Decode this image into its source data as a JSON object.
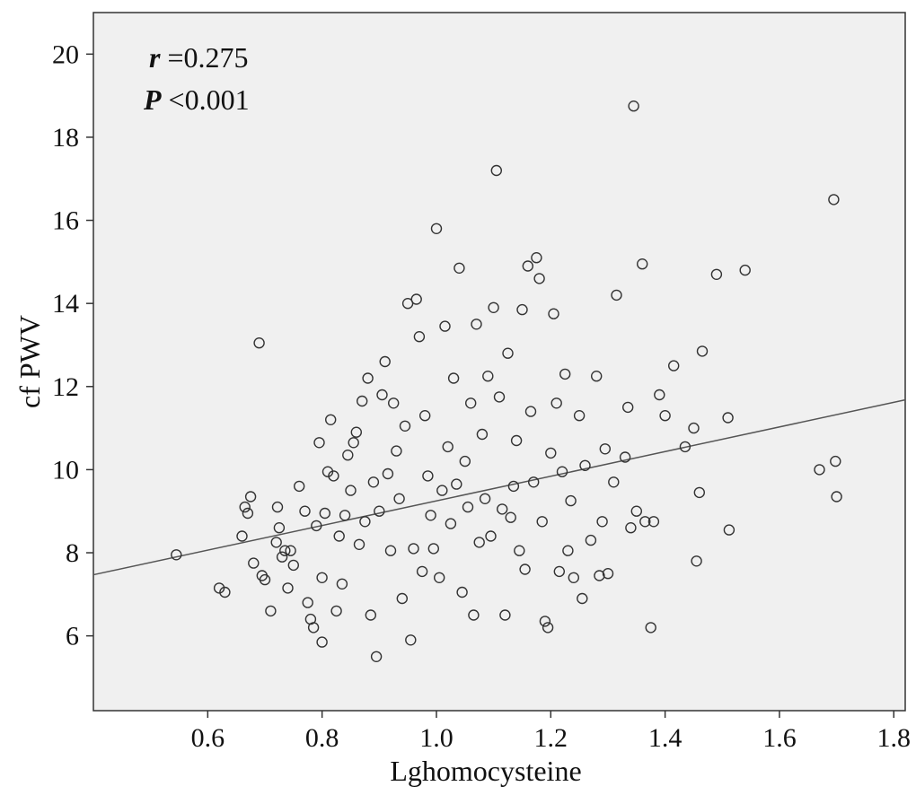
{
  "chart_data": {
    "type": "scatter",
    "xlabel": "Lghomocysteine",
    "ylabel": "cf PWV",
    "xlim": [
      0.4,
      1.82
    ],
    "ylim": [
      4.2,
      21
    ],
    "x_ticks": [
      "0.6",
      "0.8",
      "1.0",
      "1.2",
      "1.4",
      "1.6",
      "1.8"
    ],
    "y_ticks": [
      "6",
      "8",
      "10",
      "12",
      "14",
      "16",
      "18",
      "20"
    ],
    "grid": false,
    "annotation": {
      "r_label": "r",
      "r_value": " =0.275",
      "p_label": "P",
      "p_value": " <0.001"
    },
    "fit_line": {
      "x": [
        0.4,
        1.82
      ],
      "y": [
        7.47,
        11.68
      ]
    },
    "points": [
      [
        0.545,
        7.95
      ],
      [
        0.62,
        7.15
      ],
      [
        0.63,
        7.05
      ],
      [
        0.66,
        8.4
      ],
      [
        0.665,
        9.1
      ],
      [
        0.67,
        8.95
      ],
      [
        0.675,
        9.35
      ],
      [
        0.68,
        7.75
      ],
      [
        0.69,
        13.05
      ],
      [
        0.695,
        7.45
      ],
      [
        0.7,
        7.35
      ],
      [
        0.71,
        6.6
      ],
      [
        0.72,
        8.25
      ],
      [
        0.722,
        9.1
      ],
      [
        0.725,
        8.6
      ],
      [
        0.73,
        7.9
      ],
      [
        0.735,
        8.05
      ],
      [
        0.74,
        7.15
      ],
      [
        0.745,
        8.05
      ],
      [
        0.75,
        7.7
      ],
      [
        0.76,
        9.6
      ],
      [
        0.77,
        9.0
      ],
      [
        0.775,
        6.8
      ],
      [
        0.78,
        6.4
      ],
      [
        0.785,
        6.2
      ],
      [
        0.79,
        8.65
      ],
      [
        0.795,
        10.65
      ],
      [
        0.8,
        7.4
      ],
      [
        0.8,
        5.85
      ],
      [
        0.805,
        8.95
      ],
      [
        0.81,
        9.95
      ],
      [
        0.815,
        11.2
      ],
      [
        0.82,
        9.85
      ],
      [
        0.825,
        6.6
      ],
      [
        0.83,
        8.4
      ],
      [
        0.835,
        7.25
      ],
      [
        0.84,
        8.9
      ],
      [
        0.845,
        10.35
      ],
      [
        0.85,
        9.5
      ],
      [
        0.855,
        10.65
      ],
      [
        0.86,
        10.9
      ],
      [
        0.865,
        8.2
      ],
      [
        0.87,
        11.65
      ],
      [
        0.875,
        8.75
      ],
      [
        0.88,
        12.2
      ],
      [
        0.885,
        6.5
      ],
      [
        0.89,
        9.7
      ],
      [
        0.895,
        5.5
      ],
      [
        0.9,
        9.0
      ],
      [
        0.905,
        11.8
      ],
      [
        0.91,
        12.6
      ],
      [
        0.915,
        9.9
      ],
      [
        0.92,
        8.05
      ],
      [
        0.925,
        11.6
      ],
      [
        0.93,
        10.45
      ],
      [
        0.935,
        9.3
      ],
      [
        0.94,
        6.9
      ],
      [
        0.945,
        11.05
      ],
      [
        0.95,
        14.0
      ],
      [
        0.955,
        5.9
      ],
      [
        0.96,
        8.1
      ],
      [
        0.965,
        14.1
      ],
      [
        0.97,
        13.2
      ],
      [
        0.975,
        7.55
      ],
      [
        0.98,
        11.3
      ],
      [
        0.985,
        9.85
      ],
      [
        0.99,
        8.9
      ],
      [
        0.995,
        8.1
      ],
      [
        1.0,
        15.8
      ],
      [
        1.005,
        7.4
      ],
      [
        1.01,
        9.5
      ],
      [
        1.015,
        13.45
      ],
      [
        1.02,
        10.55
      ],
      [
        1.025,
        8.7
      ],
      [
        1.03,
        12.2
      ],
      [
        1.035,
        9.65
      ],
      [
        1.04,
        14.85
      ],
      [
        1.045,
        7.05
      ],
      [
        1.05,
        10.2
      ],
      [
        1.055,
        9.1
      ],
      [
        1.06,
        11.6
      ],
      [
        1.065,
        6.5
      ],
      [
        1.07,
        13.5
      ],
      [
        1.075,
        8.25
      ],
      [
        1.08,
        10.85
      ],
      [
        1.085,
        9.3
      ],
      [
        1.09,
        12.25
      ],
      [
        1.095,
        8.4
      ],
      [
        1.1,
        13.9
      ],
      [
        1.105,
        17.2
      ],
      [
        1.11,
        11.75
      ],
      [
        1.115,
        9.05
      ],
      [
        1.12,
        6.5
      ],
      [
        1.125,
        12.8
      ],
      [
        1.13,
        8.85
      ],
      [
        1.135,
        9.6
      ],
      [
        1.14,
        10.7
      ],
      [
        1.145,
        8.05
      ],
      [
        1.15,
        13.85
      ],
      [
        1.155,
        7.6
      ],
      [
        1.16,
        14.9
      ],
      [
        1.165,
        11.4
      ],
      [
        1.17,
        9.7
      ],
      [
        1.175,
        15.1
      ],
      [
        1.18,
        14.6
      ],
      [
        1.185,
        8.75
      ],
      [
        1.19,
        6.35
      ],
      [
        1.195,
        6.2
      ],
      [
        1.2,
        10.4
      ],
      [
        1.205,
        13.75
      ],
      [
        1.21,
        11.6
      ],
      [
        1.215,
        7.55
      ],
      [
        1.22,
        9.95
      ],
      [
        1.225,
        12.3
      ],
      [
        1.23,
        8.05
      ],
      [
        1.235,
        9.25
      ],
      [
        1.24,
        7.4
      ],
      [
        1.25,
        11.3
      ],
      [
        1.255,
        6.9
      ],
      [
        1.26,
        10.1
      ],
      [
        1.27,
        8.3
      ],
      [
        1.28,
        12.25
      ],
      [
        1.285,
        7.45
      ],
      [
        1.29,
        8.75
      ],
      [
        1.295,
        10.5
      ],
      [
        1.3,
        7.5
      ],
      [
        1.31,
        9.7
      ],
      [
        1.315,
        14.2
      ],
      [
        1.33,
        10.3
      ],
      [
        1.335,
        11.5
      ],
      [
        1.34,
        8.6
      ],
      [
        1.345,
        18.75
      ],
      [
        1.35,
        9.0
      ],
      [
        1.36,
        14.95
      ],
      [
        1.365,
        8.75
      ],
      [
        1.375,
        6.2
      ],
      [
        1.38,
        8.75
      ],
      [
        1.39,
        11.8
      ],
      [
        1.4,
        11.3
      ],
      [
        1.415,
        12.5
      ],
      [
        1.435,
        10.55
      ],
      [
        1.45,
        11.0
      ],
      [
        1.455,
        7.8
      ],
      [
        1.46,
        9.45
      ],
      [
        1.465,
        12.85
      ],
      [
        1.49,
        14.7
      ],
      [
        1.51,
        11.25
      ],
      [
        1.512,
        8.55
      ],
      [
        1.54,
        14.8
      ],
      [
        1.67,
        10.0
      ],
      [
        1.695,
        16.5
      ],
      [
        1.698,
        10.2
      ],
      [
        1.7,
        9.35
      ]
    ]
  }
}
